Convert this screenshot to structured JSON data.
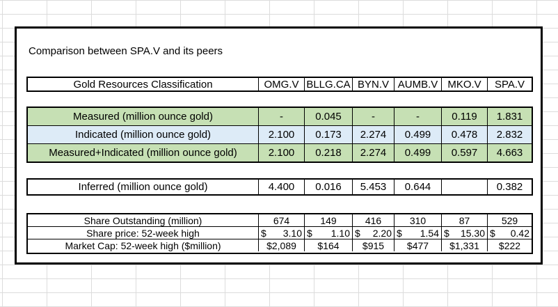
{
  "title": "Comparison between SPA.V and its peers",
  "header": {
    "label": "Gold Resources Classification",
    "tickers": [
      "OMG.V",
      "BLLG.CA",
      "BYN.V",
      "AUMB.V",
      "MKO.V",
      "SPA.V"
    ]
  },
  "resources": [
    {
      "label": "Measured (million ounce gold)",
      "values": [
        "-",
        "0.045",
        "-",
        "-",
        "0.119",
        "1.831"
      ]
    },
    {
      "label": "Indicated (million ounce gold)",
      "values": [
        "2.100",
        "0.173",
        "2.274",
        "0.499",
        "0.478",
        "2.832"
      ]
    },
    {
      "label": "Measured+Indicated (million ounce gold)",
      "values": [
        "2.100",
        "0.218",
        "2.274",
        "0.499",
        "0.597",
        "4.663"
      ]
    }
  ],
  "inferred": {
    "label": "Inferred (million ounce gold)",
    "values": [
      "4.400",
      "0.016",
      "5.453",
      "0.644",
      "",
      "0.382"
    ]
  },
  "shares": {
    "outstanding": {
      "label": "Share Outstanding (million)",
      "values": [
        "674",
        "149",
        "416",
        "310",
        "87",
        "529"
      ]
    },
    "price": {
      "label": "Share price: 52-week high",
      "currency": "$",
      "values": [
        "3.10",
        "1.10",
        "2.20",
        "1.54",
        "15.30",
        "0.42"
      ]
    },
    "market_cap": {
      "label": "Market Cap: 52-week high ($million)",
      "values": [
        "$2,089",
        "$164",
        "$915",
        "$477",
        "$1,331",
        "$222"
      ]
    }
  },
  "colors": {
    "green_row": "#c6e0b4",
    "blue_row": "#ddebf7",
    "border": "#000000",
    "gridline": "#dcdcdc"
  }
}
